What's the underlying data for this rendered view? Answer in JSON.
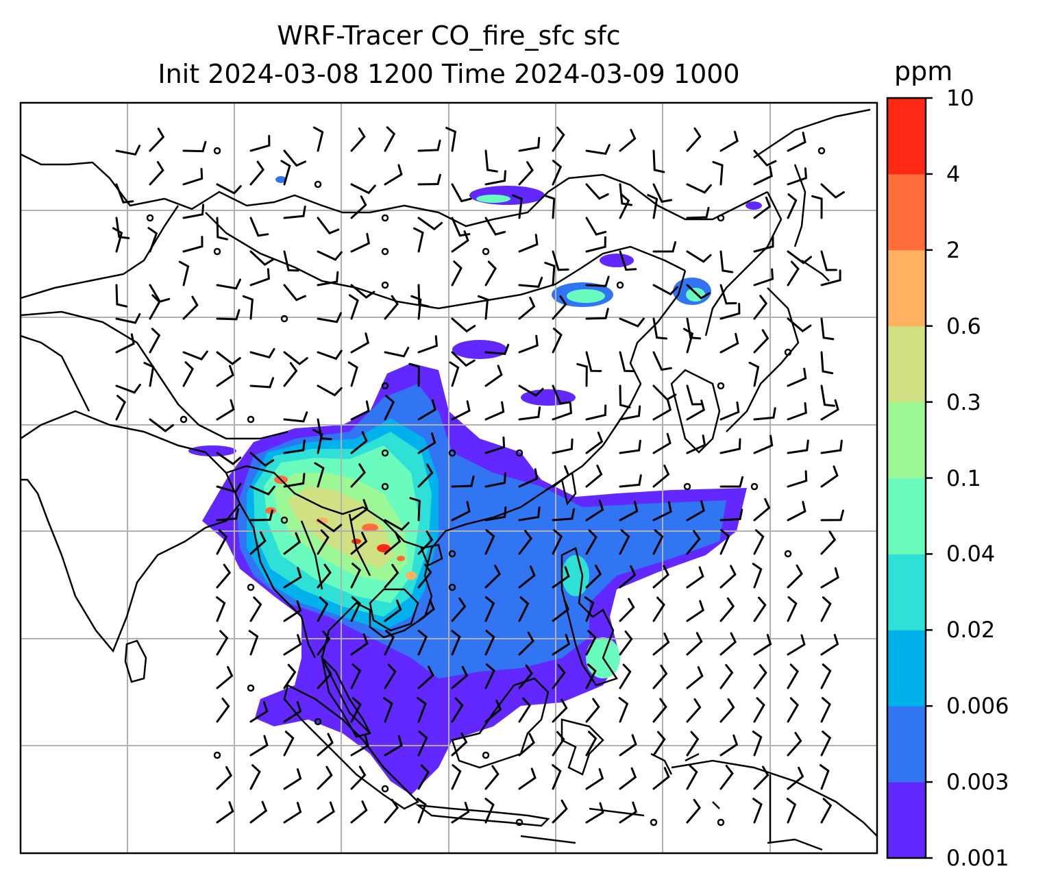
{
  "title": {
    "line1": "WRF-Tracer CO_fire_sfc sfc",
    "line2": "Init 2024-03-08 1200 Time 2024-03-09 1000"
  },
  "colorbar": {
    "unit": "ppm",
    "levels": [
      "0.001",
      "0.003",
      "0.006",
      "0.02",
      "0.04",
      "0.1",
      "0.3",
      "0.6",
      "2",
      "4",
      "10"
    ],
    "colors": [
      "#6228ff",
      "#3175f2",
      "#00b1eb",
      "#2fe0d6",
      "#6afbbf",
      "#9cf894",
      "#cfe182",
      "#ffb060",
      "#ff6e3b",
      "#ff2a16"
    ]
  },
  "map": {
    "coastline_color": "#000000",
    "gridline_color": "#b0b0b0",
    "wind_barb_color": "#000000",
    "background": "#ffffff",
    "gridlines": true
  }
}
